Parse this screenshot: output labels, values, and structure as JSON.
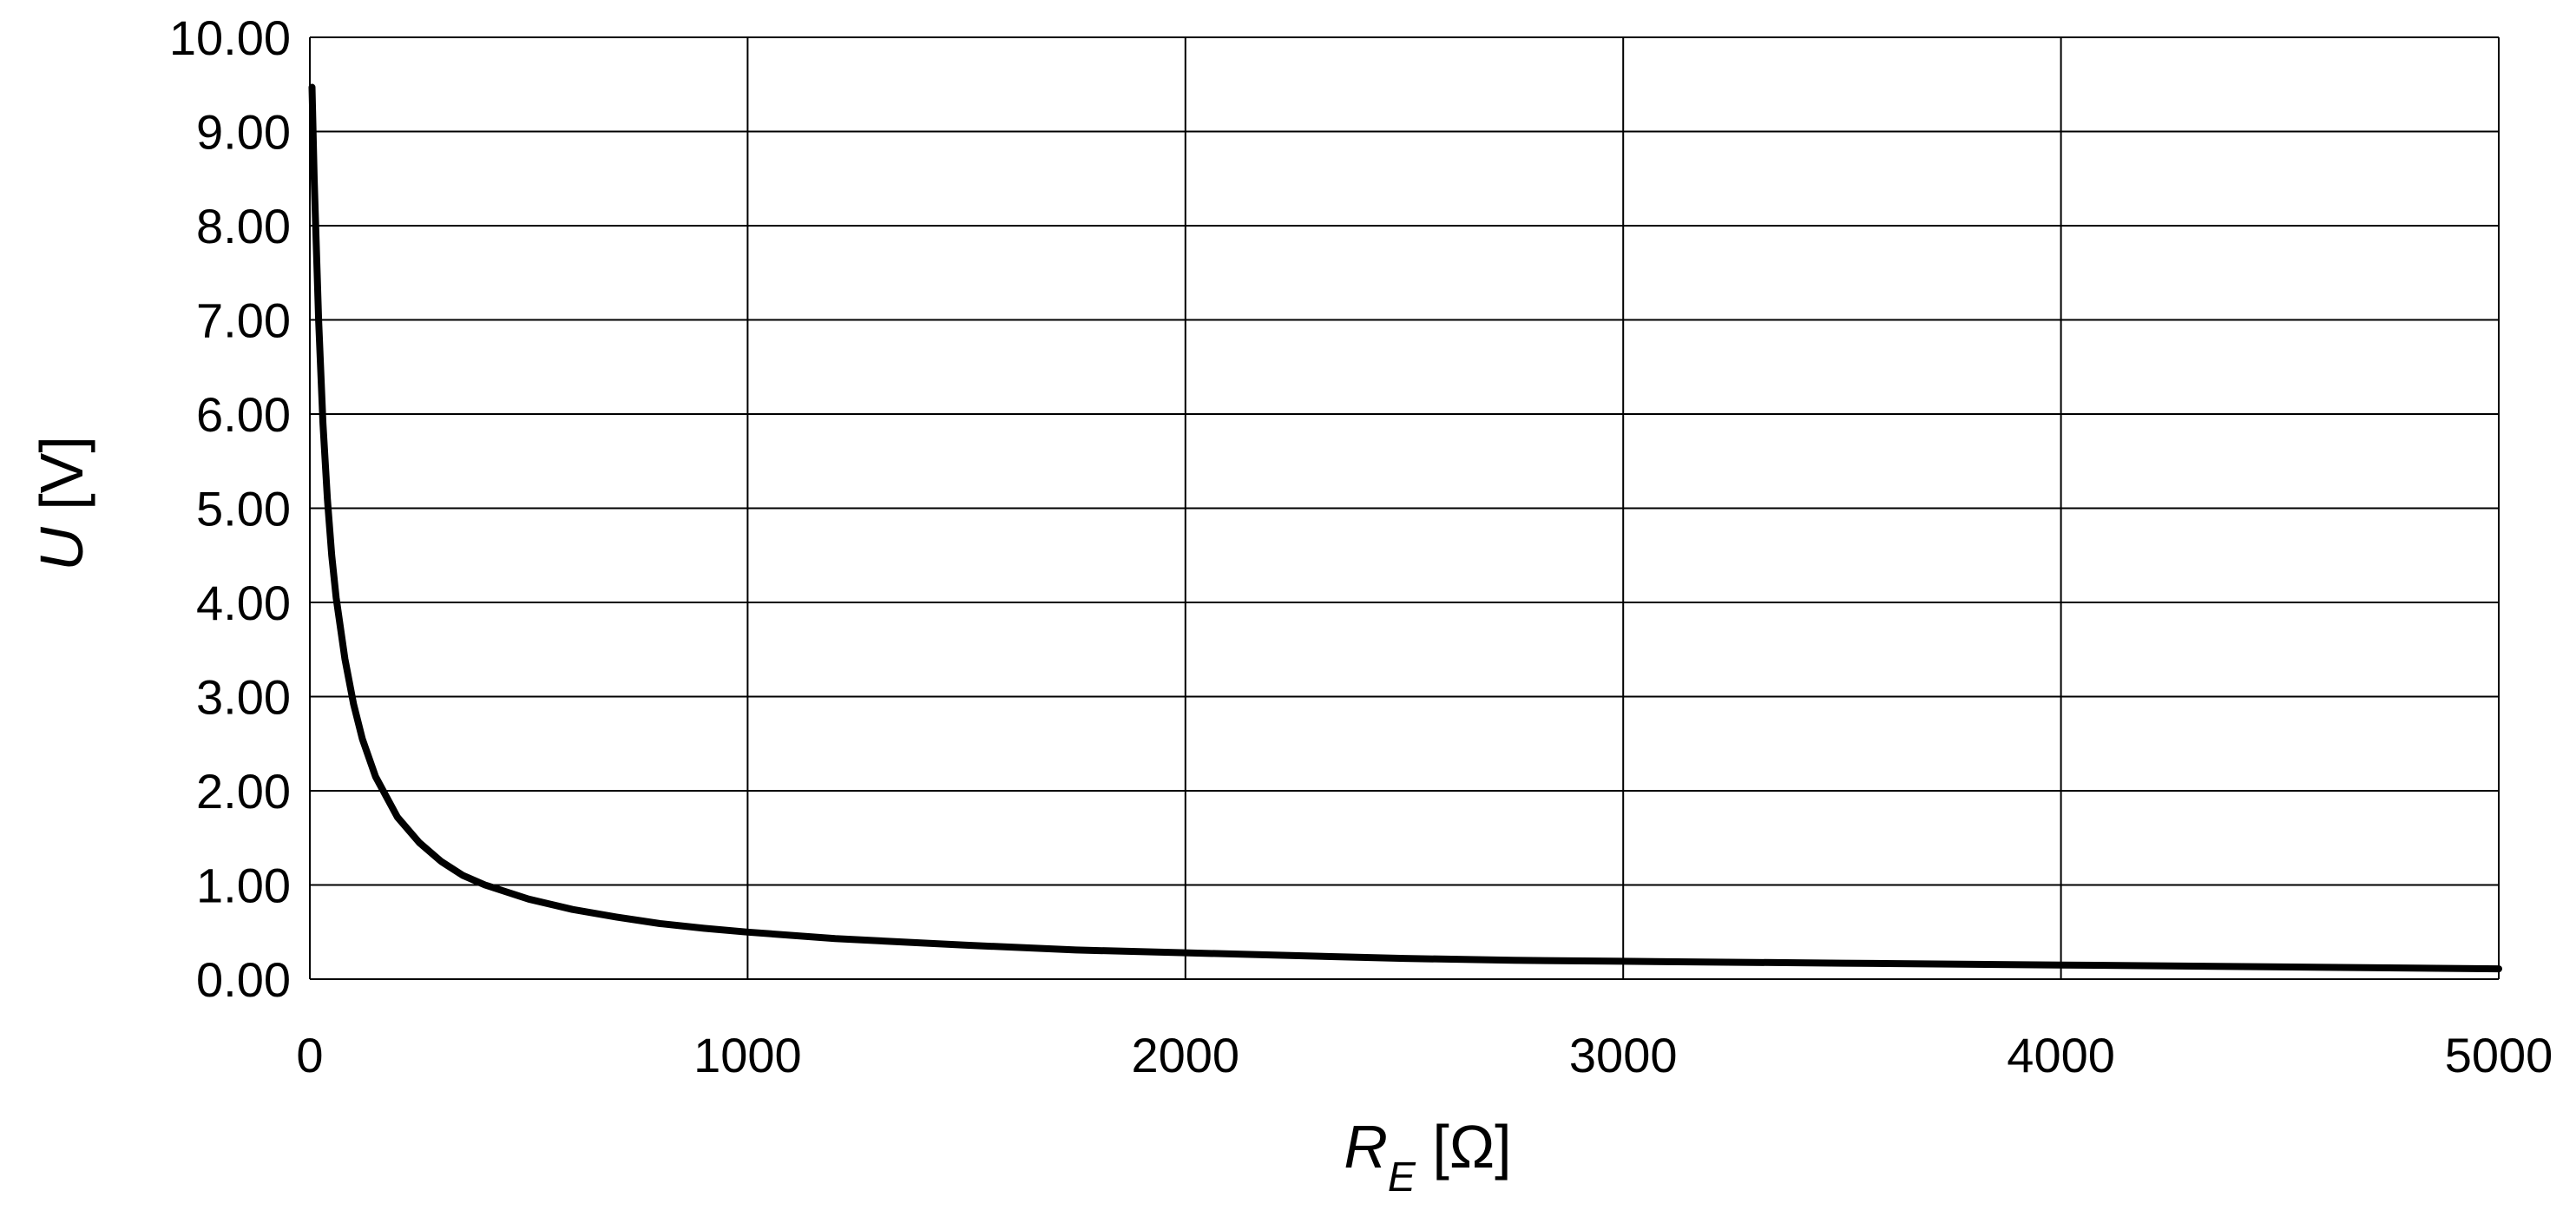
{
  "chart_data": {
    "type": "line",
    "title": "",
    "xlabel": {
      "symbol": "R",
      "subscript": "E",
      "unit": " [Ω]"
    },
    "ylabel": {
      "symbol": "U",
      "unit": " [V]"
    },
    "xlim": [
      0,
      5000
    ],
    "ylim": [
      0,
      10
    ],
    "x_ticks": [
      "0",
      "1000",
      "2000",
      "3000",
      "4000",
      "5000"
    ],
    "y_ticks": [
      "0.00",
      "1.00",
      "2.00",
      "3.00",
      "4.00",
      "5.00",
      "6.00",
      "7.00",
      "8.00",
      "9.00",
      "10.00"
    ],
    "grid": true,
    "series": [
      {
        "line_color": "#000000",
        "x": [
          5,
          10,
          20,
          30,
          40,
          50,
          60,
          80,
          100,
          120,
          150,
          200,
          250,
          300,
          350,
          400,
          500,
          600,
          700,
          800,
          900,
          1000,
          1200,
          1500,
          1750,
          2000,
          2250,
          2500,
          2750,
          3000,
          3500,
          4000,
          4500,
          5000
        ],
        "y": [
          9.47,
          8.5,
          7.0,
          5.9,
          5.1,
          4.5,
          4.05,
          3.4,
          2.92,
          2.55,
          2.15,
          1.72,
          1.45,
          1.25,
          1.1,
          1.0,
          0.85,
          0.74,
          0.66,
          0.59,
          0.54,
          0.5,
          0.43,
          0.36,
          0.31,
          0.28,
          0.25,
          0.22,
          0.2,
          0.19,
          0.17,
          0.15,
          0.13,
          0.11
        ]
      }
    ]
  }
}
